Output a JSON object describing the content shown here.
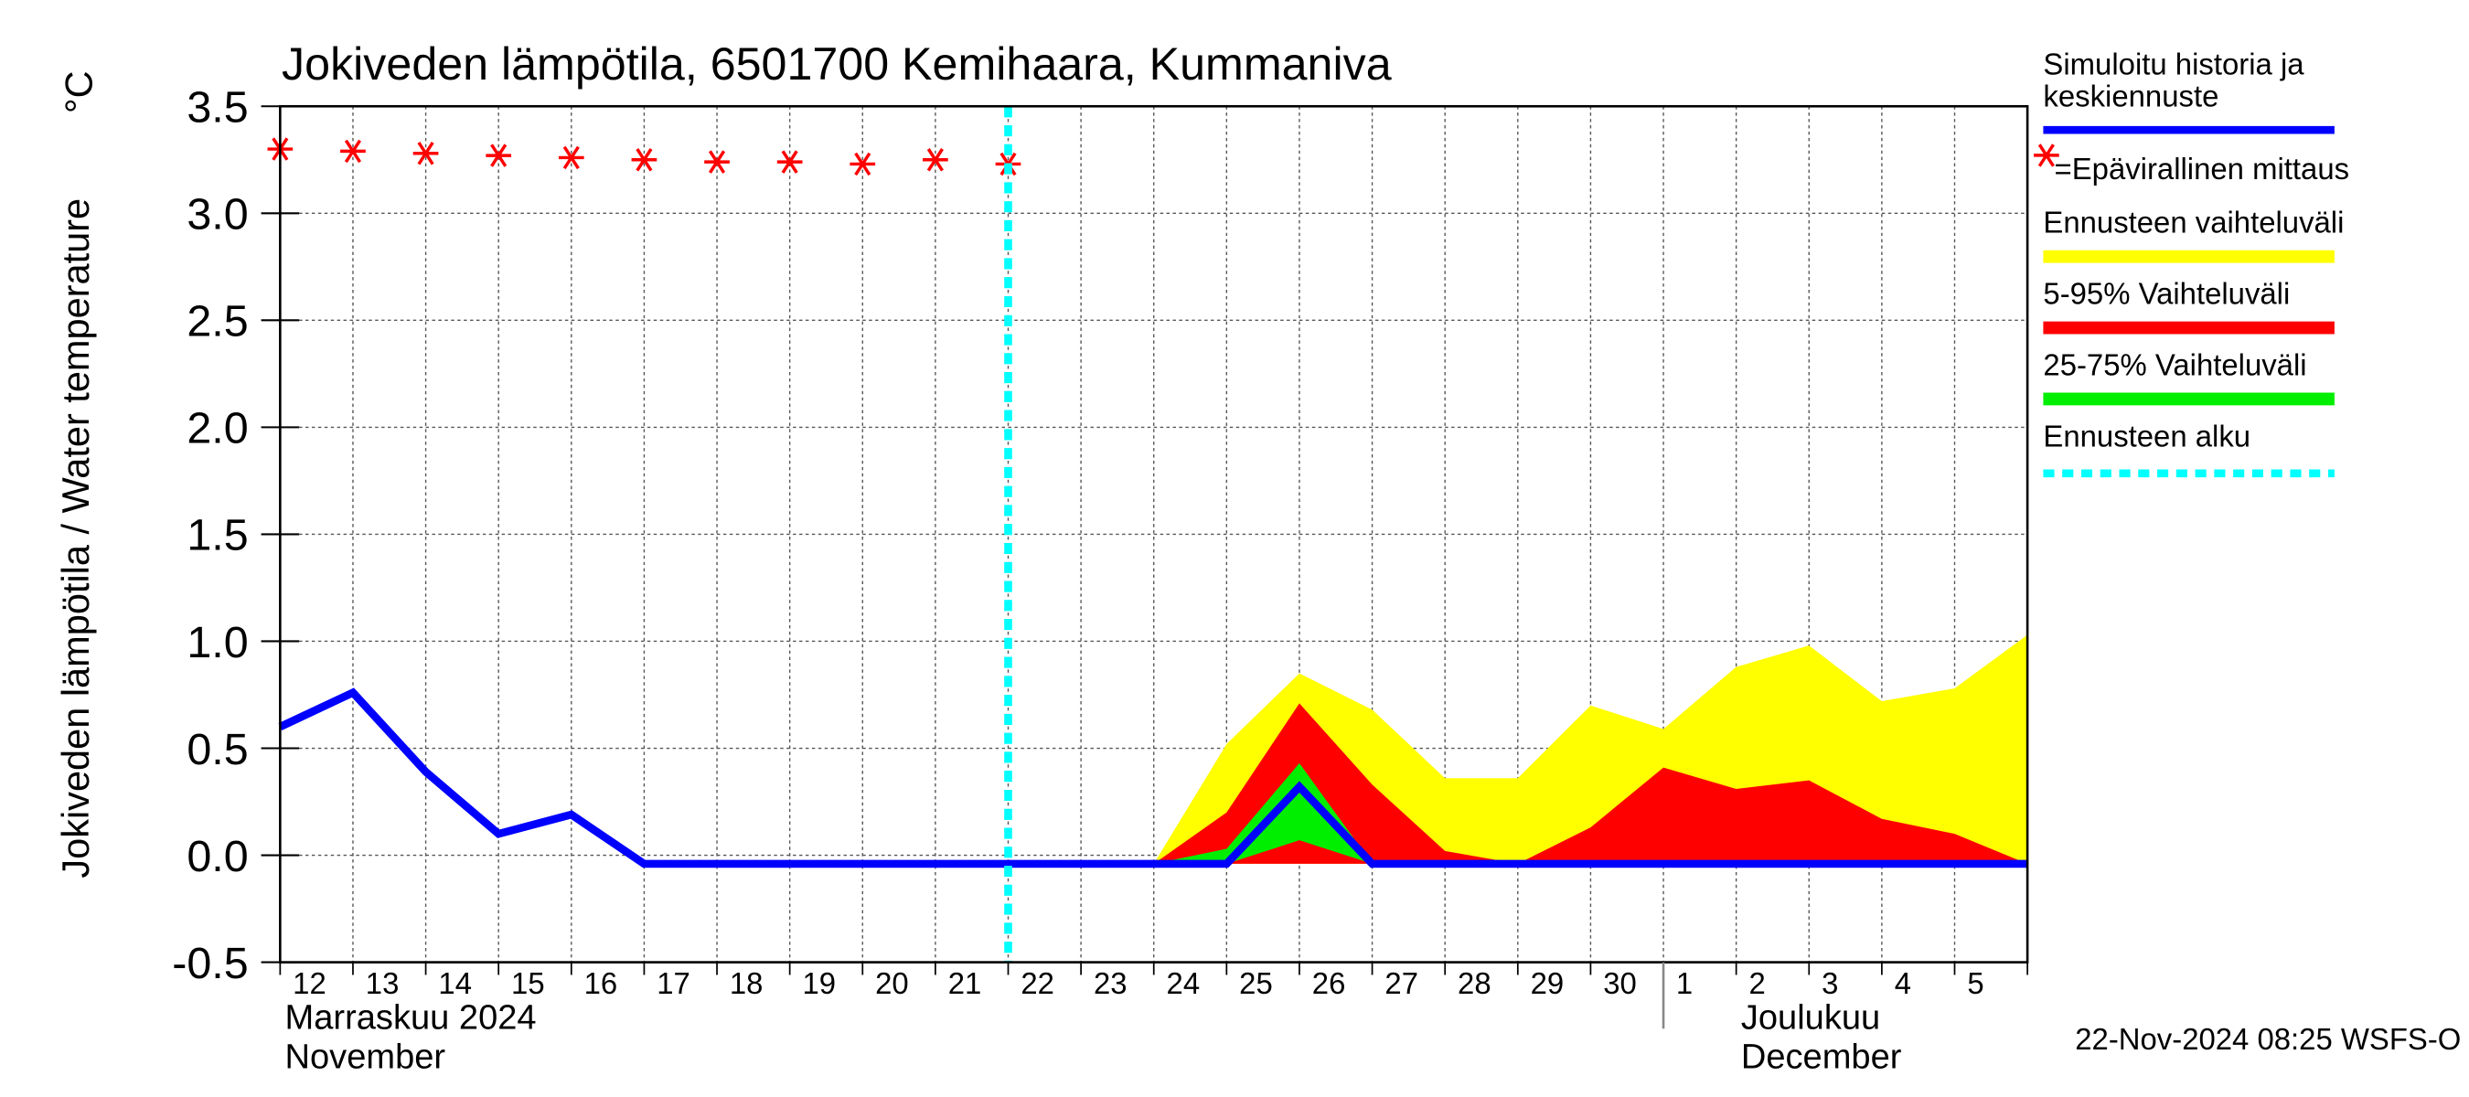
{
  "chart_data": {
    "type": "area-line",
    "title": "Jokiveden lämpötila, 6501700 Kemihaara, Kummaniva",
    "y_label": "Jokiveden lämpötila / Water temperature",
    "y_unit": "°C",
    "footer": "22-Nov-2024 08:25 WSFS-O",
    "categories": [
      "12",
      "13",
      "14",
      "15",
      "16",
      "17",
      "18",
      "19",
      "20",
      "21",
      "22",
      "23",
      "24",
      "25",
      "26",
      "27",
      "28",
      "29",
      "30",
      "1",
      "2",
      "3",
      "4",
      "5",
      null
    ],
    "month_groups": [
      {
        "start": "12",
        "label": "Marraskuu 2024",
        "label_en": "November"
      },
      {
        "start": "1",
        "label": "Joulukuu",
        "label_en": "December"
      }
    ],
    "ylim": [
      -0.5,
      3.5
    ],
    "yticks": [
      -0.5,
      {
        "value": 0,
        "label": "0.0"
      },
      0.5,
      {
        "value": 1,
        "label": "1.0"
      },
      1.5,
      {
        "value": 2,
        "label": "2.0"
      },
      2.5,
      {
        "value": 3,
        "label": "3.0"
      },
      3.5
    ],
    "grid": true,
    "forecast_start": {
      "name": "Ennusteen alku",
      "category": "22",
      "color": "#00ffff"
    },
    "series": [
      {
        "name": "Simuloitu historia ja keskiennuste",
        "style": "line",
        "color": "#0000ff",
        "values": [
          0.6,
          0.76,
          0.39,
          0.1,
          0.19,
          -0.04,
          -0.04,
          -0.04,
          -0.04,
          -0.04,
          -0.04,
          -0.04,
          -0.04,
          -0.04,
          0.32,
          -0.04,
          -0.04,
          -0.04,
          -0.04,
          -0.04,
          -0.04,
          -0.04,
          -0.04,
          -0.04,
          -0.04
        ]
      },
      {
        "name": "=Epävirallinen mittaus",
        "style": "marker",
        "color": "#ff0000",
        "values": [
          3.3,
          3.29,
          3.28,
          3.27,
          3.26,
          3.25,
          3.24,
          3.24,
          3.23,
          3.25,
          3.23,
          null,
          null,
          null,
          null,
          null,
          null,
          null,
          null,
          null,
          null,
          null,
          null,
          null,
          null
        ]
      },
      {
        "name": "Ennusteen vaihteluväli",
        "style": "band",
        "color": "#ffff00",
        "values": [
          null,
          null,
          null,
          null,
          null,
          null,
          null,
          null,
          null,
          null,
          null,
          null,
          -0.04,
          0.52,
          0.85,
          0.68,
          0.36,
          0.36,
          0.7,
          0.59,
          0.88,
          0.98,
          0.72,
          0.78,
          1.03
        ],
        "lower": [
          null,
          null,
          null,
          null,
          null,
          null,
          null,
          null,
          null,
          null,
          null,
          null,
          -0.04,
          -0.04,
          -0.04,
          -0.04,
          -0.04,
          -0.04,
          -0.04,
          -0.04,
          -0.04,
          -0.04,
          -0.04,
          -0.04,
          -0.04
        ]
      },
      {
        "name": "5-95% Vaihteluväli",
        "style": "band",
        "color": "#ff0000",
        "values": [
          null,
          null,
          null,
          null,
          null,
          null,
          null,
          null,
          null,
          null,
          null,
          null,
          -0.04,
          0.2,
          0.71,
          0.33,
          0.02,
          -0.04,
          0.13,
          0.41,
          0.31,
          0.35,
          0.17,
          0.1,
          -0.04
        ],
        "lower": [
          null,
          null,
          null,
          null,
          null,
          null,
          null,
          null,
          null,
          null,
          null,
          null,
          -0.04,
          -0.04,
          -0.04,
          -0.04,
          -0.04,
          -0.04,
          -0.04,
          -0.04,
          -0.04,
          -0.04,
          -0.04,
          -0.04,
          -0.04
        ]
      },
      {
        "name": "25-75% Vaihteluväli",
        "style": "band",
        "color": "#00ee00",
        "values": [
          null,
          null,
          null,
          null,
          null,
          null,
          null,
          null,
          null,
          null,
          null,
          null,
          -0.04,
          0.03,
          0.43,
          -0.04,
          null,
          null,
          null,
          null,
          null,
          null,
          null,
          null,
          null
        ],
        "lower": [
          null,
          null,
          null,
          null,
          null,
          null,
          null,
          null,
          null,
          null,
          null,
          null,
          -0.04,
          -0.04,
          0.07,
          -0.04,
          null,
          null,
          null,
          null,
          null,
          null,
          null,
          null,
          null
        ]
      }
    ]
  }
}
